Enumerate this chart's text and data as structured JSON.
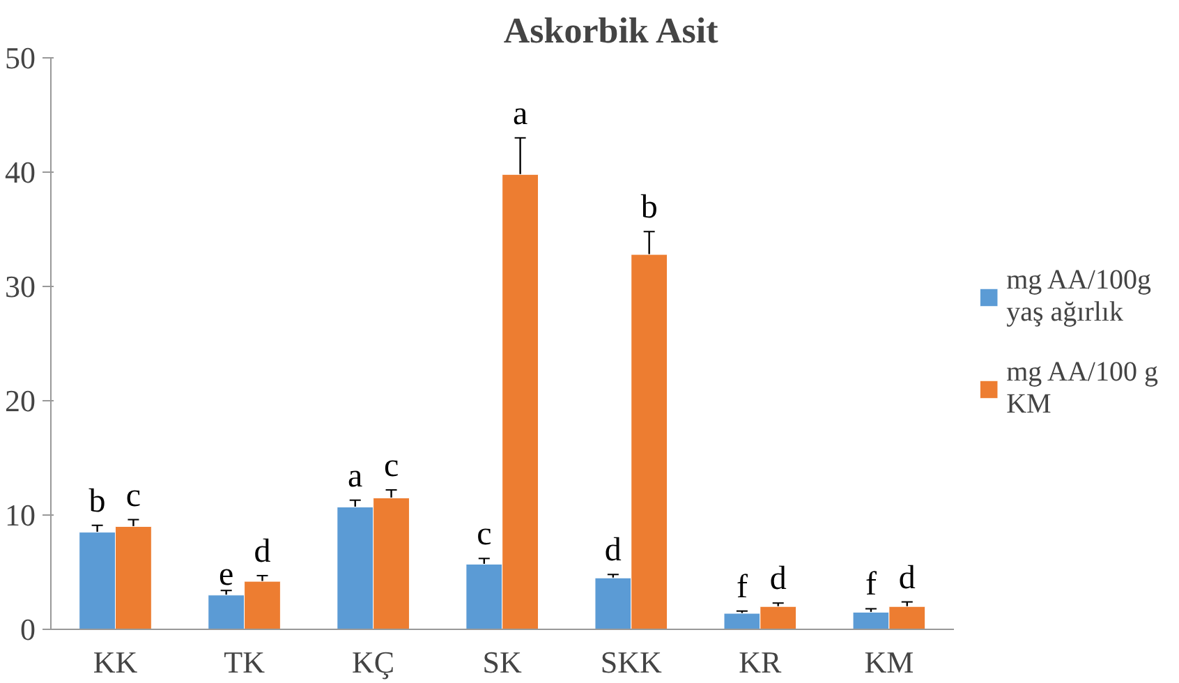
{
  "chart_data": {
    "type": "bar",
    "title": "Askorbik Asit",
    "categories": [
      "KK",
      "TK",
      "KÇ",
      "SK",
      "SKK",
      "KR",
      "KM"
    ],
    "series": [
      {
        "name": "mg AA/100g yaş ağırlık",
        "color": "#5b9bd5",
        "values": [
          8.5,
          3.0,
          10.7,
          5.7,
          4.5,
          1.4,
          1.5
        ],
        "errors": [
          0.6,
          0.4,
          0.6,
          0.5,
          0.3,
          0.2,
          0.3
        ]
      },
      {
        "name": "mg AA/100 g KM",
        "color": "#ed7d31",
        "values": [
          9.0,
          4.2,
          11.5,
          39.8,
          32.8,
          2.0,
          2.0
        ],
        "errors": [
          0.6,
          0.5,
          0.7,
          3.2,
          2.0,
          0.3,
          0.4
        ]
      }
    ],
    "ylim": [
      0,
      50
    ],
    "yticks": [
      0,
      10,
      20,
      30,
      40,
      50
    ],
    "grid": false,
    "legend": "right",
    "annotations": [
      "b",
      "c",
      "e",
      "d",
      "a",
      "c",
      "c",
      "a",
      "d",
      "b",
      "f",
      "d",
      "f",
      "d"
    ]
  }
}
